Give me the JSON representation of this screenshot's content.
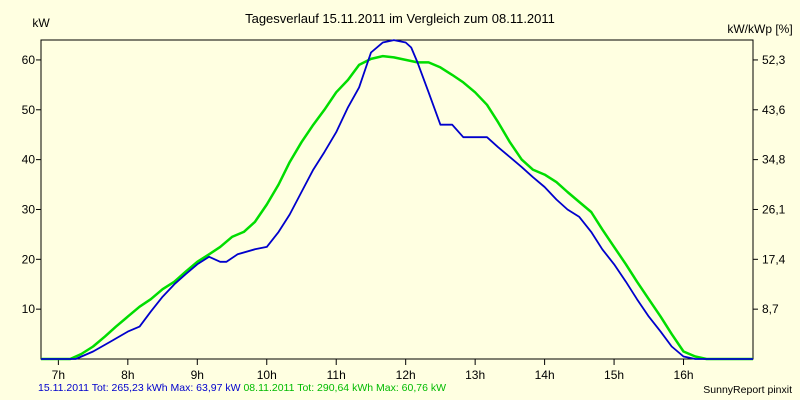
{
  "chart_data": {
    "type": "line",
    "title": "Tagesverlauf 15.11.2011 im Vergleich zum 08.11.2011",
    "ylabel_left": "kW",
    "ylabel_right": "kW/kWp [%]",
    "xlim": [
      6.75,
      17
    ],
    "ylim": [
      0,
      64
    ],
    "x_ticks": [
      7,
      8,
      9,
      10,
      11,
      12,
      13,
      14,
      15,
      16
    ],
    "x_tick_labels": [
      "7h",
      "8h",
      "9h",
      "10h",
      "11h",
      "12h",
      "13h",
      "14h",
      "15h",
      "16h"
    ],
    "y_ticks_left": [
      10,
      20,
      30,
      40,
      50,
      60
    ],
    "y_ticks_right": [
      {
        "value": 8.7,
        "at": 10
      },
      {
        "value": 17.4,
        "at": 20
      },
      {
        "value": 26.1,
        "at": 30
      },
      {
        "value": 34.8,
        "at": 40
      },
      {
        "value": 43.6,
        "at": 50
      },
      {
        "value": 52.3,
        "at": 60
      }
    ],
    "y_tick_labels_right": [
      "8,7",
      "17,4",
      "26,1",
      "34,8",
      "43,6",
      "52,3"
    ],
    "grid": false,
    "series": [
      {
        "name": "15.11.2011",
        "color": "#0000cc",
        "x": [
          6.75,
          7.25,
          7.5,
          7.75,
          8.0,
          8.17,
          8.33,
          8.5,
          8.67,
          8.83,
          9.0,
          9.17,
          9.33,
          9.42,
          9.58,
          9.83,
          10.0,
          10.17,
          10.33,
          10.5,
          10.67,
          10.83,
          11.0,
          11.17,
          11.33,
          11.5,
          11.67,
          11.83,
          12.0,
          12.08,
          12.17,
          12.33,
          12.5,
          12.67,
          12.83,
          13.0,
          13.17,
          13.33,
          13.5,
          13.67,
          13.83,
          14.0,
          14.17,
          14.33,
          14.5,
          14.67,
          14.83,
          15.0,
          15.17,
          15.33,
          15.5,
          15.67,
          15.83,
          16.0,
          16.17,
          16.33,
          16.5,
          16.67,
          17.0
        ],
        "values": [
          0,
          0,
          1.5,
          3.5,
          5.5,
          6.5,
          9.5,
          12.5,
          15,
          17,
          19,
          20.5,
          19.5,
          19.5,
          21,
          22,
          22.5,
          25.5,
          29,
          33.5,
          38,
          41.5,
          45.5,
          50.5,
          54.5,
          61.5,
          63.5,
          63.97,
          63.5,
          62.5,
          59.5,
          53.5,
          47,
          47,
          44.5,
          44.5,
          44.5,
          42.5,
          40.5,
          38.5,
          36.5,
          34.5,
          32,
          30,
          28.5,
          25.5,
          22,
          19,
          15.5,
          12,
          8.5,
          5.5,
          2.5,
          0.5,
          0,
          0,
          0,
          0,
          0
        ]
      },
      {
        "name": "08.11.2011",
        "color": "#00dd00",
        "x": [
          6.75,
          7.17,
          7.33,
          7.5,
          7.67,
          7.83,
          8.0,
          8.17,
          8.33,
          8.5,
          8.67,
          8.83,
          9.0,
          9.17,
          9.33,
          9.5,
          9.67,
          9.83,
          10.0,
          10.17,
          10.33,
          10.5,
          10.67,
          10.83,
          11.0,
          11.17,
          11.33,
          11.5,
          11.67,
          11.83,
          12.0,
          12.17,
          12.33,
          12.5,
          12.67,
          12.83,
          13.0,
          13.17,
          13.33,
          13.5,
          13.67,
          13.83,
          14.0,
          14.17,
          14.33,
          14.5,
          14.67,
          14.83,
          15.0,
          15.17,
          15.33,
          15.5,
          15.67,
          15.83,
          16.0,
          16.17,
          16.33,
          16.5,
          16.67,
          17.0
        ],
        "values": [
          0,
          0,
          1,
          2.5,
          4.5,
          6.5,
          8.5,
          10.5,
          12,
          14,
          15.5,
          17.5,
          19.5,
          21,
          22.5,
          24.5,
          25.5,
          27.5,
          31,
          35,
          39.5,
          43.5,
          47,
          50,
          53.5,
          56,
          59,
          60.2,
          60.76,
          60.5,
          60,
          59.5,
          59.5,
          58.5,
          57,
          55.5,
          53.5,
          51,
          47.5,
          43.5,
          40,
          38,
          37,
          35.5,
          33.5,
          31.5,
          29.5,
          26,
          22.5,
          19,
          15.5,
          12,
          8.5,
          5,
          1.5,
          0.5,
          0,
          0,
          0,
          0
        ]
      }
    ]
  },
  "footer": {
    "series1_text": "15.11.2011 Tot: 265,23 kWh Max: 63,97 kW",
    "series2_text": "08.11.2011 Tot: 290,64 kWh Max: 60,76 kW",
    "credit": "SunnyReport pinxit"
  },
  "colors": {
    "background": "#ffffe1",
    "axis": "#000000"
  }
}
